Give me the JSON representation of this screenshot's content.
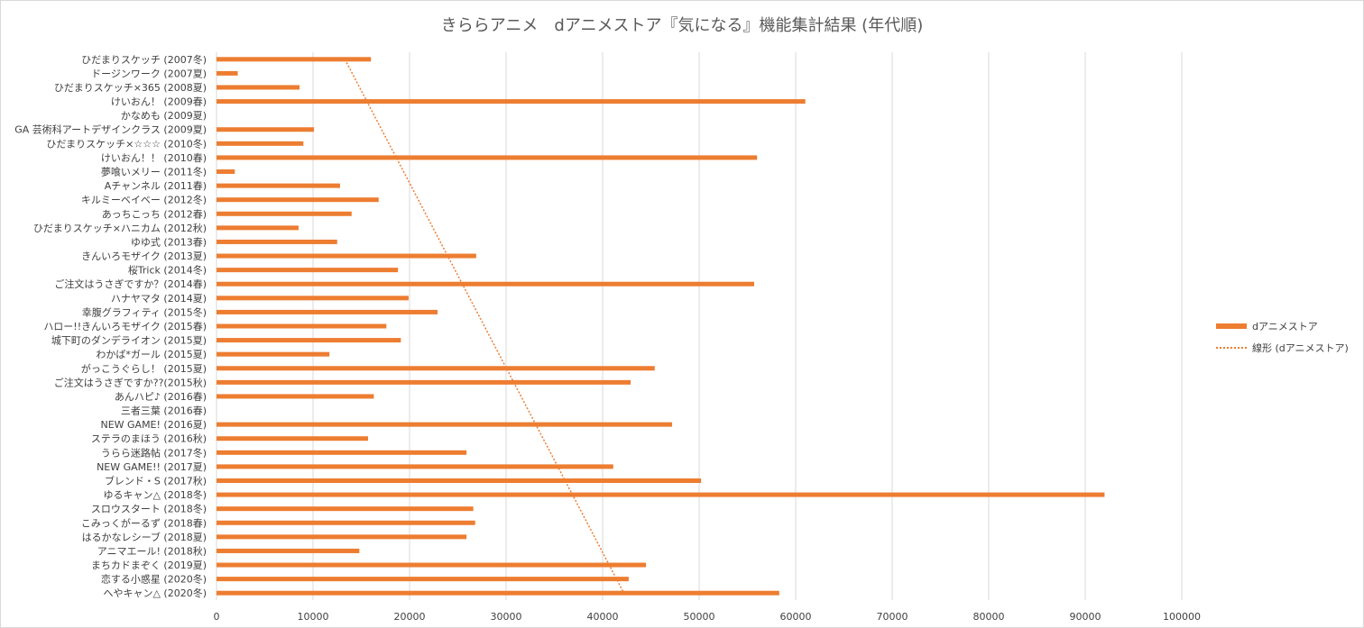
{
  "chart_data": {
    "type": "bar",
    "orientation": "horizontal",
    "title": "きららアニメ　dアニメストア『気になる』機能集計結果 (年代順)",
    "xlim": [
      0,
      100000
    ],
    "xticks": [
      0,
      10000,
      20000,
      30000,
      40000,
      50000,
      60000,
      70000,
      80000,
      90000,
      100000
    ],
    "grid": true,
    "legend_position": "right",
    "colors": {
      "bar": "#ED7D31",
      "trendline": "#ED7D31",
      "grid": "#d9d9d9"
    },
    "series": [
      {
        "name": "dアニメストア",
        "kind": "bar",
        "values": [
          16000,
          2200,
          8600,
          61000,
          0,
          10100,
          9000,
          56000,
          1900,
          12800,
          16800,
          14000,
          8500,
          12500,
          26900,
          18800,
          55700,
          19900,
          22900,
          17600,
          19100,
          11700,
          45400,
          42900,
          16300,
          0,
          47200,
          15700,
          25900,
          41100,
          50200,
          92000,
          26600,
          26800,
          25900,
          14800,
          44500,
          42700,
          58300
        ]
      },
      {
        "name": "線形 (dアニメストア)",
        "kind": "linear-trendline",
        "start": 13300,
        "end": 42200
      }
    ],
    "categories": [
      "ひだまりスケッチ (2007冬)",
      "ドージンワーク (2007夏)",
      "ひだまりスケッチ×365 (2008夏)",
      "けいおん！ (2009春)",
      "かなめも (2009夏)",
      "GA 芸術科アートデザインクラス (2009夏)",
      "ひだまりスケッチ×☆☆☆ (2010冬)",
      "けいおん！！ (2010春)",
      "夢喰いメリー (2011冬)",
      "Aチャンネル (2011春)",
      "キルミーベイベー (2012冬)",
      "あっちこっち (2012春)",
      "ひだまりスケッチ×ハニカム (2012秋)",
      "ゆゆ式 (2013春)",
      "きんいろモザイク (2013夏)",
      "桜Trick (2014冬)",
      "ご注文はうさぎですか？(2014春)",
      "ハナヤマタ (2014夏)",
      "幸腹グラフィティ (2015冬)",
      "ハロー!!きんいろモザイク (2015春)",
      "城下町のダンデライオン (2015夏)",
      "わかば*ガール (2015夏)",
      "がっこうぐらし！ (2015夏)",
      "ご注文はうさぎですか??(2015秋)",
      "あんハピ♪ (2016春)",
      "三者三葉 (2016春)",
      "NEW GAME! (2016夏)",
      "ステラのまほう (2016秋)",
      "うらら迷路帖 (2017冬)",
      "NEW GAME!! (2017夏)",
      "ブレンド・S (2017秋)",
      "ゆるキャン△ (2018冬)",
      "スロウスタート (2018冬)",
      "こみっくがーるず (2018春)",
      "はるかなレシーブ (2018夏)",
      "アニマエール! (2018秋)",
      "まちカドまぞく (2019夏)",
      "恋する小惑星 (2020冬)",
      "へやキャン△ (2020冬)"
    ]
  }
}
